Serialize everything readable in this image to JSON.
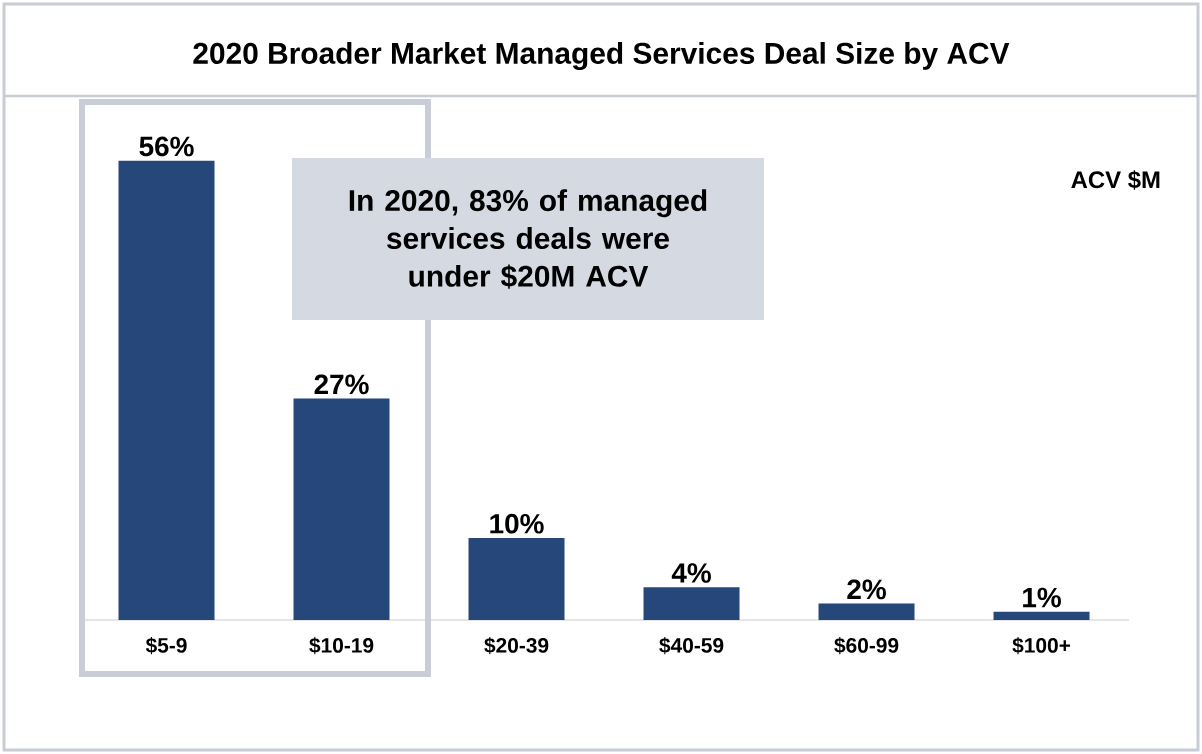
{
  "chart_data": {
    "type": "bar",
    "title": "2020 Broader Market Managed Services Deal Size by ACV",
    "categories": [
      "$5-9",
      "$10-19",
      "$20-39",
      "$40-59",
      "$60-99",
      "$100+"
    ],
    "values": [
      56,
      27,
      10,
      4,
      2,
      1
    ],
    "value_labels": [
      "56%",
      "27%",
      "10%",
      "4%",
      "2%",
      "1%"
    ],
    "color": "#26477a",
    "annotations": [
      "In 2020, 83% of managed services deals were under $20M ACV",
      "ACV $M"
    ]
  }
}
